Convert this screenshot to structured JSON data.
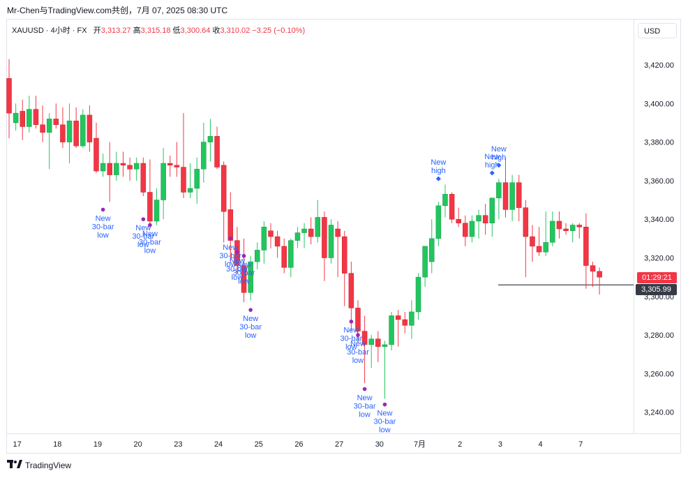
{
  "caption": "Mr-Chen与TradingView.com共创，7月 07, 2025 08:30 UTC",
  "legend": {
    "symbol": "XAUUSD · 4小时 · FX",
    "open_label": "开",
    "open": "3,313.27",
    "high_label": "高",
    "high": "3,315.18",
    "low_label": "低",
    "low": "3,300.64",
    "close_label": "收",
    "close": "3,310.02",
    "change": "−3.25 (−0.10%)"
  },
  "currency": "USD",
  "countdown": "01:29:21",
  "last_price": "3,305.99",
  "logo_text": "TradingView",
  "colors": {
    "up": "#22c55e",
    "down": "#f23645",
    "marker_low": "#9c27b0",
    "marker_high": "#2962ff",
    "annotation_text": "#2962ff"
  },
  "chart_data": {
    "type": "candlestick",
    "symbol": "XAUUSD",
    "interval": "4h",
    "y_ticks": [
      "3,420.00",
      "3,400.00",
      "3,380.00",
      "3,360.00",
      "3,340.00",
      "3,320.00",
      "3,300.00",
      "3,280.00",
      "3,260.00",
      "3,240.00"
    ],
    "y_values": [
      3420,
      3400,
      3380,
      3360,
      3340,
      3320,
      3300,
      3280,
      3260,
      3240
    ],
    "ylim": [
      3228,
      3438
    ],
    "x_labels": [
      "17",
      "18",
      "19",
      "20",
      "23",
      "24",
      "25",
      "26",
      "27",
      "30",
      "7月",
      "2",
      "3",
      "4",
      "7"
    ],
    "x_label_index": [
      1,
      7,
      13,
      19,
      25,
      31,
      37,
      43,
      49,
      55,
      61,
      67,
      73,
      79,
      85
    ],
    "candles": [
      [
        3413,
        3423,
        3382,
        3395
      ],
      [
        3390,
        3400,
        3386,
        3395
      ],
      [
        3396,
        3402,
        3381,
        3388
      ],
      [
        3388,
        3404,
        3385,
        3397
      ],
      [
        3397,
        3404,
        3387,
        3389
      ],
      [
        3389,
        3399,
        3380,
        3385
      ],
      [
        3385,
        3395,
        3366,
        3392
      ],
      [
        3392,
        3400,
        3387,
        3389
      ],
      [
        3389,
        3398,
        3377,
        3380
      ],
      [
        3380,
        3400,
        3369,
        3391
      ],
      [
        3391,
        3398,
        3377,
        3378
      ],
      [
        3378,
        3397,
        3377,
        3394
      ],
      [
        3394,
        3399,
        3375,
        3380
      ],
      [
        3382,
        3390,
        3364,
        3365
      ],
      [
        3365,
        3374,
        3362,
        3369
      ],
      [
        3369,
        3380,
        3349,
        3363
      ],
      [
        3363,
        3375,
        3360,
        3369
      ],
      [
        3369,
        3375,
        3362,
        3368
      ],
      [
        3368,
        3372,
        3360,
        3366
      ],
      [
        3366,
        3372,
        3360,
        3369
      ],
      [
        3369,
        3372,
        3352,
        3354
      ],
      [
        3354,
        3371,
        3336,
        3339
      ],
      [
        3339,
        3356,
        3337,
        3350
      ],
      [
        3350,
        3377,
        3340,
        3369
      ],
      [
        3369,
        3373,
        3362,
        3368
      ],
      [
        3368,
        3380,
        3362,
        3367
      ],
      [
        3367,
        3395,
        3351,
        3354
      ],
      [
        3354,
        3369,
        3351,
        3356
      ],
      [
        3356,
        3372,
        3348,
        3366
      ],
      [
        3366,
        3390,
        3359,
        3380
      ],
      [
        3380,
        3392,
        3370,
        3383
      ],
      [
        3383,
        3388,
        3366,
        3367
      ],
      [
        3368,
        3370,
        3328,
        3344
      ],
      [
        3345,
        3354,
        3318,
        3329
      ],
      [
        3329,
        3336,
        3312,
        3316
      ],
      [
        3316,
        3330,
        3297,
        3302
      ],
      [
        3302,
        3321,
        3298,
        3318
      ],
      [
        3318,
        3328,
        3314,
        3324
      ],
      [
        3324,
        3339,
        3317,
        3336
      ],
      [
        3334,
        3338,
        3325,
        3331
      ],
      [
        3331,
        3334,
        3320,
        3326
      ],
      [
        3326,
        3330,
        3312,
        3315
      ],
      [
        3315,
        3330,
        3310,
        3329
      ],
      [
        3329,
        3336,
        3325,
        3333
      ],
      [
        3333,
        3338,
        3325,
        3335
      ],
      [
        3335,
        3341,
        3327,
        3331
      ],
      [
        3331,
        3350,
        3328,
        3341
      ],
      [
        3341,
        3344,
        3308,
        3320
      ],
      [
        3320,
        3340,
        3317,
        3337
      ],
      [
        3335,
        3339,
        3310,
        3331
      ],
      [
        3331,
        3334,
        3295,
        3312
      ],
      [
        3312,
        3318,
        3282,
        3294
      ],
      [
        3294,
        3298,
        3276,
        3282
      ],
      [
        3282,
        3290,
        3255,
        3275
      ],
      [
        3275,
        3280,
        3263,
        3278
      ],
      [
        3278,
        3282,
        3266,
        3274
      ],
      [
        3274,
        3277,
        3247,
        3275
      ],
      [
        3275,
        3292,
        3272,
        3290
      ],
      [
        3290,
        3293,
        3274,
        3288
      ],
      [
        3288,
        3292,
        3281,
        3285
      ],
      [
        3285,
        3298,
        3278,
        3292
      ],
      [
        3292,
        3312,
        3288,
        3310
      ],
      [
        3310,
        3324,
        3305,
        3326
      ],
      [
        3318,
        3340,
        3312,
        3330
      ],
      [
        3330,
        3349,
        3326,
        3347
      ],
      [
        3347,
        3358,
        3341,
        3353
      ],
      [
        3353,
        3354,
        3338,
        3340
      ],
      [
        3340,
        3346,
        3336,
        3338
      ],
      [
        3338,
        3342,
        3326,
        3331
      ],
      [
        3331,
        3342,
        3328,
        3339
      ],
      [
        3339,
        3345,
        3330,
        3342
      ],
      [
        3342,
        3348,
        3332,
        3338
      ],
      [
        3338,
        3350,
        3331,
        3351
      ],
      [
        3351,
        3361,
        3340,
        3359
      ],
      [
        3359,
        3372,
        3341,
        3345
      ],
      [
        3345,
        3363,
        3339,
        3359
      ],
      [
        3359,
        3363,
        3339,
        3346
      ],
      [
        3346,
        3350,
        3310,
        3331
      ],
      [
        3331,
        3337,
        3318,
        3326
      ],
      [
        3326,
        3336,
        3321,
        3323
      ],
      [
        3323,
        3344,
        3321,
        3328
      ],
      [
        3328,
        3344,
        3326,
        3339
      ],
      [
        3339,
        3344,
        3330,
        3335
      ],
      [
        3335,
        3338,
        3332,
        3334
      ],
      [
        3334,
        3338,
        3328,
        3337
      ],
      [
        3337,
        3338,
        3330,
        3336
      ],
      [
        3336,
        3343,
        3304,
        3316
      ],
      [
        3316,
        3318,
        3305,
        3313
      ],
      [
        3313,
        3315,
        3301,
        3310
      ]
    ],
    "annotations": [
      {
        "index": 14,
        "kind": "low",
        "price": 3345,
        "lines": [
          "New",
          "30-bar",
          "low"
        ]
      },
      {
        "index": 20,
        "kind": "low",
        "price": 3340,
        "lines": [
          "New",
          "30-bar",
          "low"
        ]
      },
      {
        "index": 21,
        "kind": "low",
        "price": 3337,
        "lines": [
          "New",
          "30-bar",
          "low"
        ]
      },
      {
        "index": 33,
        "kind": "low",
        "price": 3330,
        "lines": [
          "New",
          "30-bar",
          "low"
        ]
      },
      {
        "index": 34,
        "kind": "low",
        "price": 3323,
        "lines": [
          "New",
          "30-bar",
          "low"
        ]
      },
      {
        "index": 35,
        "kind": "low",
        "price": 3321,
        "lines": [
          "New",
          "30-bar",
          "low"
        ]
      },
      {
        "index": 36,
        "kind": "low",
        "price": 3293,
        "lines": [
          "New",
          "30-bar",
          "low"
        ]
      },
      {
        "index": 51,
        "kind": "low",
        "price": 3287,
        "lines": [
          "New",
          "30-bar",
          "low"
        ]
      },
      {
        "index": 52,
        "kind": "low",
        "price": 3280,
        "lines": [
          "New",
          "30-bar",
          "low"
        ]
      },
      {
        "index": 53,
        "kind": "low",
        "price": 3252,
        "lines": [
          "New",
          "30-bar",
          "low"
        ]
      },
      {
        "index": 56,
        "kind": "low",
        "price": 3244,
        "lines": [
          "New",
          "30-bar",
          "low"
        ]
      },
      {
        "index": 64,
        "kind": "high",
        "price": 3361,
        "lines": [
          "New",
          "high"
        ]
      },
      {
        "index": 72,
        "kind": "high",
        "price": 3364,
        "lines": [
          "New",
          "high"
        ]
      },
      {
        "index": 73,
        "kind": "high",
        "price": 3368,
        "lines": [
          "New",
          "high"
        ]
      }
    ],
    "last_price_value": 3305.99
  }
}
